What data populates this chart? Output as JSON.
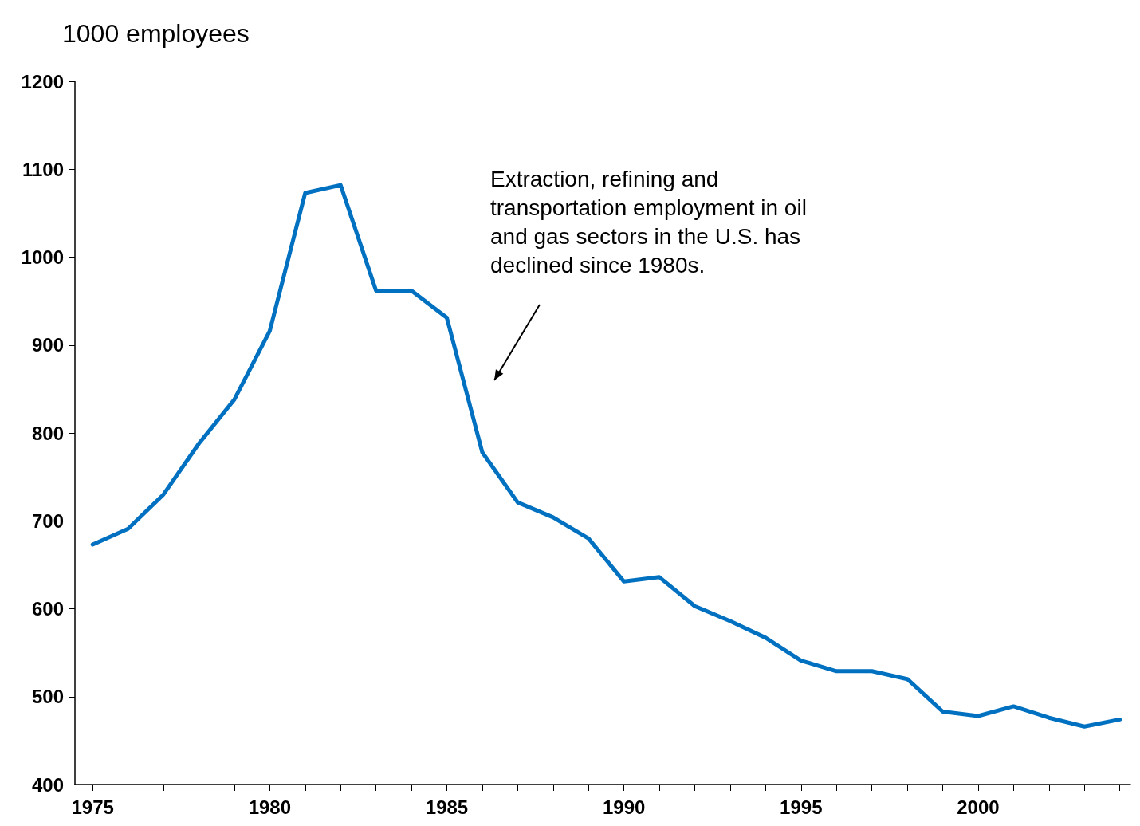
{
  "chart_data": {
    "type": "line",
    "ylabel": "1000 employees",
    "x": [
      1975,
      1976,
      1977,
      1978,
      1979,
      1980,
      1981,
      1982,
      1983,
      1984,
      1985,
      1986,
      1987,
      1988,
      1989,
      1990,
      1991,
      1992,
      1993,
      1994,
      1995,
      1996,
      1997,
      1998,
      1999,
      2000,
      2001,
      2002,
      2003,
      2004
    ],
    "series": [
      {
        "color": "#0070c0",
        "values": [
          673,
          691,
          730,
          788,
          838,
          916,
          1073,
          1082,
          962,
          962,
          931,
          778,
          721,
          704,
          680,
          631,
          636,
          603,
          586,
          567,
          541,
          529,
          529,
          520,
          483,
          478,
          489,
          476,
          466,
          474
        ]
      }
    ],
    "xlim": [
      1974.5,
      2004.3
    ],
    "xticks": [
      1975,
      {
        "value": 1976,
        "label": null
      },
      {
        "value": 1977,
        "label": null
      },
      {
        "value": 1978,
        "label": null
      },
      {
        "value": 1979,
        "label": null
      },
      1980,
      {
        "value": 1981,
        "label": null
      },
      {
        "value": 1982,
        "label": null
      },
      {
        "value": 1983,
        "label": null
      },
      {
        "value": 1984,
        "label": null
      },
      1985,
      {
        "value": 1986,
        "label": null
      },
      {
        "value": 1987,
        "label": null
      },
      {
        "value": 1988,
        "label": null
      },
      {
        "value": 1989,
        "label": null
      },
      1990,
      {
        "value": 1991,
        "label": null
      },
      {
        "value": 1992,
        "label": null
      },
      {
        "value": 1993,
        "label": null
      },
      {
        "value": 1994,
        "label": null
      },
      1995,
      {
        "value": 1996,
        "label": null
      },
      {
        "value": 1997,
        "label": null
      },
      {
        "value": 1998,
        "label": null
      },
      {
        "value": 1999,
        "label": null
      },
      2000,
      {
        "value": 2001,
        "label": null
      },
      {
        "value": 2002,
        "label": null
      },
      {
        "value": 2003,
        "label": null
      },
      {
        "value": 2004,
        "label": null
      }
    ],
    "ylim": [
      400,
      1200
    ],
    "yticks": [
      400,
      500,
      600,
      700,
      800,
      900,
      1000,
      1100,
      1200
    ],
    "annotations": [
      "Extraction, refining and transportation employment in oil and gas sectors in the U.S. has declined since 1980s."
    ],
    "marker": "none",
    "line_style": "solid"
  }
}
